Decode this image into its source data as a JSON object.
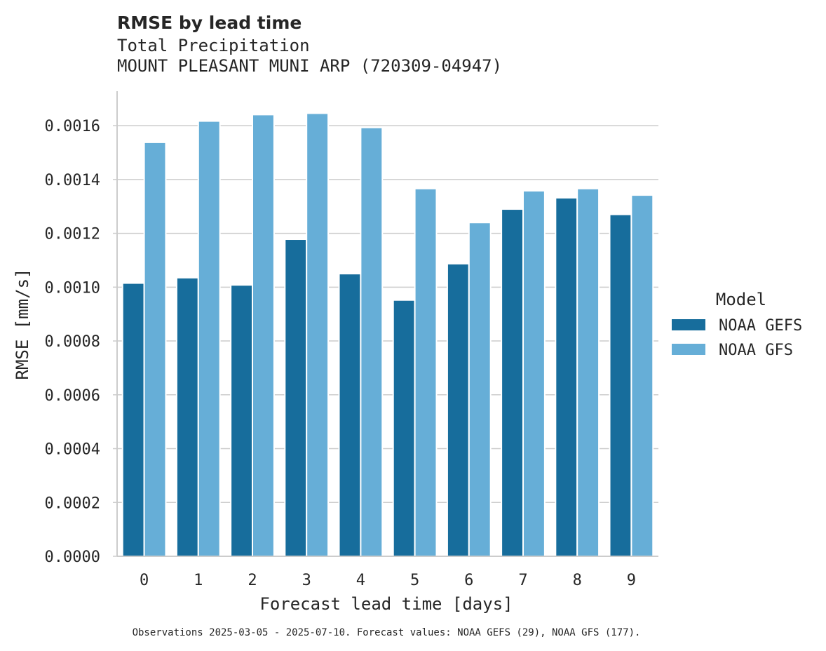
{
  "chart_data": {
    "type": "bar",
    "title": "RMSE by lead time",
    "subtitle_lines": [
      "Total Precipitation",
      "MOUNT PLEASANT MUNI ARP (720309-04947)"
    ],
    "xlabel": "Forecast lead time [days]",
    "ylabel": "RMSE [mm/s]",
    "categories": [
      "0",
      "1",
      "2",
      "3",
      "4",
      "5",
      "6",
      "7",
      "8",
      "9"
    ],
    "series": [
      {
        "name": "NOAA GEFS",
        "color": "#176d9c",
        "values": [
          0.001015,
          0.001035,
          0.001008,
          0.001178,
          0.00105,
          0.000952,
          0.001087,
          0.00129,
          0.001332,
          0.00127
        ]
      },
      {
        "name": "NOAA GFS",
        "color": "#66aed7",
        "values": [
          0.001538,
          0.001617,
          0.001641,
          0.001646,
          0.001593,
          0.001366,
          0.00124,
          0.001358,
          0.001366,
          0.001342
        ]
      }
    ],
    "ylim": [
      0,
      0.001728
    ],
    "yticks": [
      "0.0000",
      "0.0002",
      "0.0004",
      "0.0006",
      "0.0008",
      "0.0010",
      "0.0012",
      "0.0014",
      "0.0016"
    ],
    "ytick_values": [
      0,
      0.0002,
      0.0004,
      0.0006,
      0.0008,
      0.001,
      0.0012,
      0.0014,
      0.0016
    ],
    "grid": true,
    "legend": {
      "title": "Model",
      "placement": "right, outside plot"
    },
    "footnote": "Observations 2025-03-05 - 2025-07-10. Forecast values: NOAA GEFS (29), NOAA GFS (177)."
  }
}
